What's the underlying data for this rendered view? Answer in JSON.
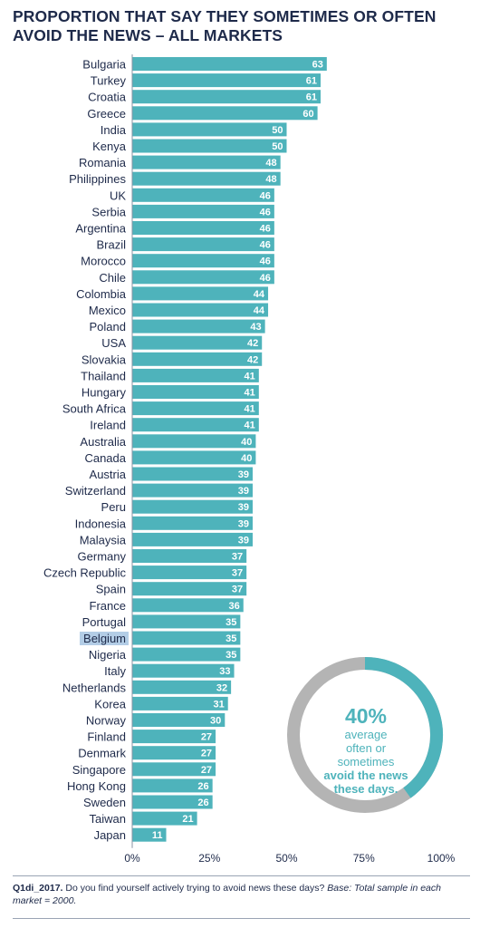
{
  "title": "PROPORTION THAT SAY THEY SOMETIMES OR OFTEN AVOID THE NEWS – ALL MARKETS",
  "callout": {
    "percent": "40%",
    "line1": "average",
    "line2": "often or sometimes",
    "line3": "avoid the news",
    "line4": "these days.",
    "share": 0.4
  },
  "footnote": {
    "code": "Q1di_2017.",
    "question": " Do you find yourself actively trying to avoid news these days? ",
    "base": "Base: Total sample in each market = 2000."
  },
  "colors": {
    "bar": "#4eb3bb",
    "donut_fill": "#4eb3bb",
    "donut_track": "#b4b4b4",
    "highlight": "#b3cde6",
    "text": "#1e2a4a"
  },
  "chart_data": {
    "type": "bar",
    "orientation": "horizontal",
    "highlighted_category": "Belgium",
    "categories": [
      "Bulgaria",
      "Turkey",
      "Croatia",
      "Greece",
      "India",
      "Kenya",
      "Romania",
      "Philippines",
      "UK",
      "Serbia",
      "Argentina",
      "Brazil",
      "Morocco",
      "Chile",
      "Colombia",
      "Mexico",
      "Poland",
      "USA",
      "Slovakia",
      "Thailand",
      "Hungary",
      "South Africa",
      "Ireland",
      "Australia",
      "Canada",
      "Austria",
      "Switzerland",
      "Peru",
      "Indonesia",
      "Malaysia",
      "Germany",
      "Czech Republic",
      "Spain",
      "France",
      "Portugal",
      "Belgium",
      "Nigeria",
      "Italy",
      "Netherlands",
      "Korea",
      "Norway",
      "Finland",
      "Denmark",
      "Singapore",
      "Hong Kong",
      "Sweden",
      "Taiwan",
      "Japan"
    ],
    "values": [
      63,
      61,
      61,
      60,
      50,
      50,
      48,
      48,
      46,
      46,
      46,
      46,
      46,
      46,
      44,
      44,
      43,
      42,
      42,
      41,
      41,
      41,
      41,
      40,
      40,
      39,
      39,
      39,
      39,
      39,
      37,
      37,
      37,
      36,
      35,
      35,
      35,
      33,
      32,
      31,
      30,
      27,
      27,
      27,
      26,
      26,
      21,
      11
    ],
    "xlim": [
      0,
      100
    ],
    "xticks": [
      "0%",
      "25%",
      "50%",
      "75%",
      "100%"
    ],
    "grid": false
  }
}
